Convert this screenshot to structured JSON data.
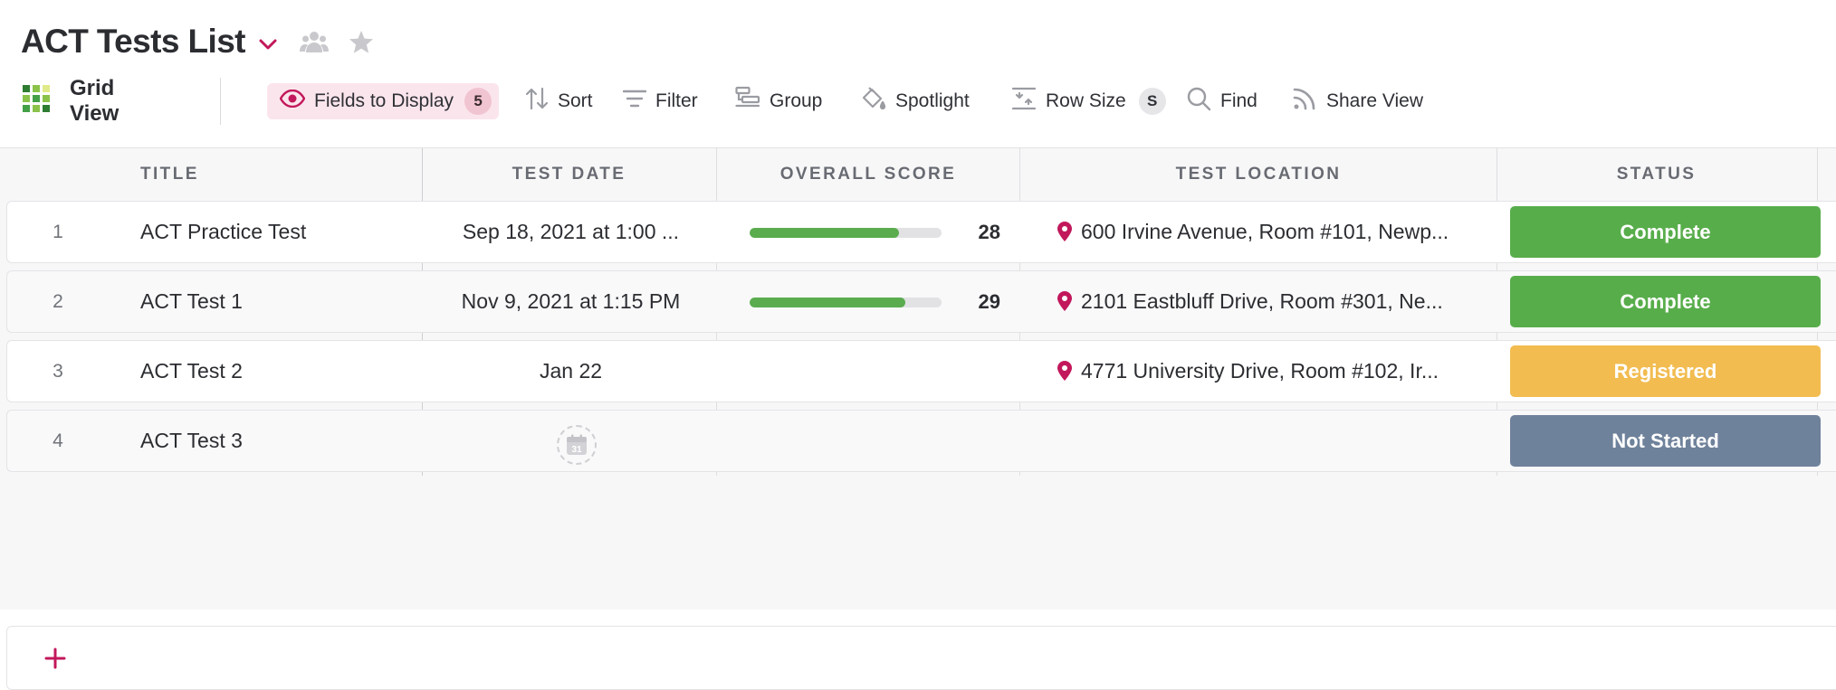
{
  "header": {
    "title": "ACT Tests List"
  },
  "toolbar": {
    "view_label": "Grid View",
    "fields_label": "Fields to Display",
    "fields_count": "5",
    "sort_label": "Sort",
    "filter_label": "Filter",
    "group_label": "Group",
    "spotlight_label": "Spotlight",
    "rowsize_label": "Row Size",
    "rowsize_value": "S",
    "find_label": "Find",
    "share_label": "Share View"
  },
  "columns": {
    "title": "TITLE",
    "test_date": "TEST DATE",
    "overall_score": "OVERALL SCORE",
    "test_location": "TEST LOCATION",
    "status": "STATUS"
  },
  "rows": [
    {
      "num": "1",
      "title": "ACT Practice Test",
      "date": "Sep 18, 2021 at 1:00 ...",
      "score": "28",
      "score_fraction": 0.78,
      "location": "600 Irvine Avenue, Room #101, Newp...",
      "status": "Complete"
    },
    {
      "num": "2",
      "title": "ACT Test 1",
      "date": "Nov 9, 2021 at 1:15 PM",
      "score": "29",
      "score_fraction": 0.81,
      "location": "2101 Eastbluff Drive, Room #301, Ne...",
      "status": "Complete"
    },
    {
      "num": "3",
      "title": "ACT Test 2",
      "date": "Jan 22",
      "score": "",
      "score_fraction": null,
      "location": "4771 University Drive, Room #102, Ir...",
      "status": "Registered"
    },
    {
      "num": "4",
      "title": "ACT Test 3",
      "date": "",
      "score": "",
      "score_fraction": null,
      "location": "",
      "status": "Not Started",
      "date_placeholder": "31"
    }
  ],
  "colors": {
    "accent": "#c2185b",
    "complete": "#58ad4b",
    "registered": "#f2bc50",
    "not_started": "#6f829b",
    "score_fill": "#5aac4e"
  }
}
